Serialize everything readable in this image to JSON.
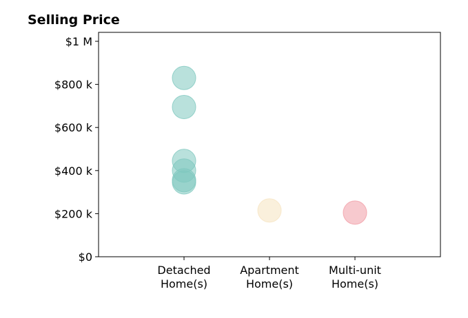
{
  "chart_data": {
    "type": "scatter",
    "title": "Selling Price",
    "xlabel": "",
    "ylabel": "",
    "categories": [
      "Detached\nHome(s)",
      "Apartment\nHome(s)",
      "Multi-unit\nHome(s)"
    ],
    "ylim": [
      0,
      1000000
    ],
    "yticks": [
      0,
      200000,
      400000,
      600000,
      800000,
      1000000
    ],
    "ytick_labels": [
      "$0",
      "$200 k",
      "$400 k",
      "$600 k",
      "$800 k",
      "$1 M"
    ],
    "grid": false,
    "series": [
      {
        "category": "Detached\nHome(s)",
        "color": "#7fc8bf",
        "values": [
          830000,
          695000,
          445000,
          400000,
          355000,
          345000
        ]
      },
      {
        "category": "Apartment\nHome(s)",
        "color": "#f6e3c0",
        "values": [
          215000
        ]
      },
      {
        "category": "Multi-unit\nHome(s)",
        "color": "#f19ca5",
        "values": [
          205000
        ]
      }
    ]
  }
}
